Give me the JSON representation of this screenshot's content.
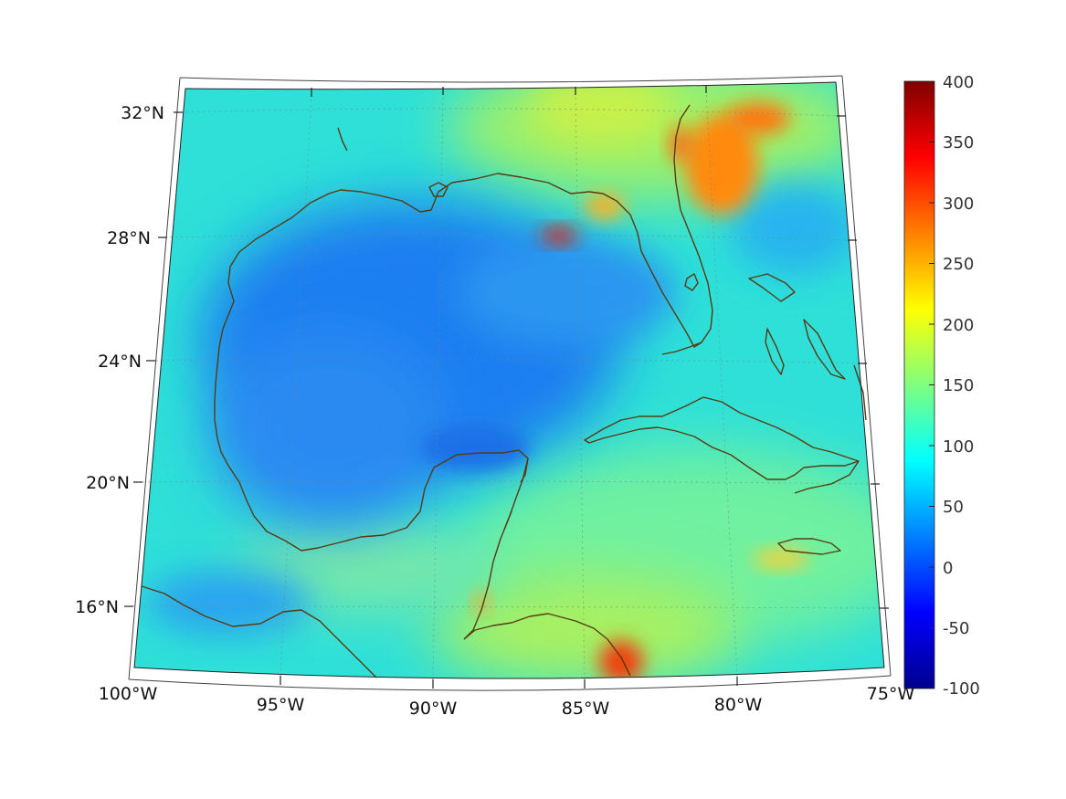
{
  "map": {
    "lon_labels": [
      "100°W",
      "95°W",
      "90°W",
      "85°W",
      "80°W",
      "75°W"
    ],
    "lat_labels": [
      "32°N",
      "28°N",
      "24°N",
      "20°N",
      "16°N"
    ],
    "lon_range": [
      -100,
      -75
    ],
    "lat_range": [
      14,
      33
    ],
    "projection": "conic",
    "graticule_style": "dotted",
    "coastline_color": "#5a3a12"
  },
  "colorbar": {
    "colormap": "jet",
    "ticks": [
      "400",
      "350",
      "300",
      "250",
      "200",
      "150",
      "100",
      "50",
      "0",
      "-50",
      "-100"
    ],
    "range": [
      -100,
      400
    ]
  },
  "field_notes": {
    "dominant_gulf_value": 50,
    "caribbean_value": 130,
    "hotspots": [
      {
        "region": "Georgia/Florida east coast",
        "value": 300
      },
      {
        "region": "Florida panhandle offshore",
        "value": 330
      },
      {
        "region": "Honduras coast",
        "value": 330
      }
    ]
  }
}
